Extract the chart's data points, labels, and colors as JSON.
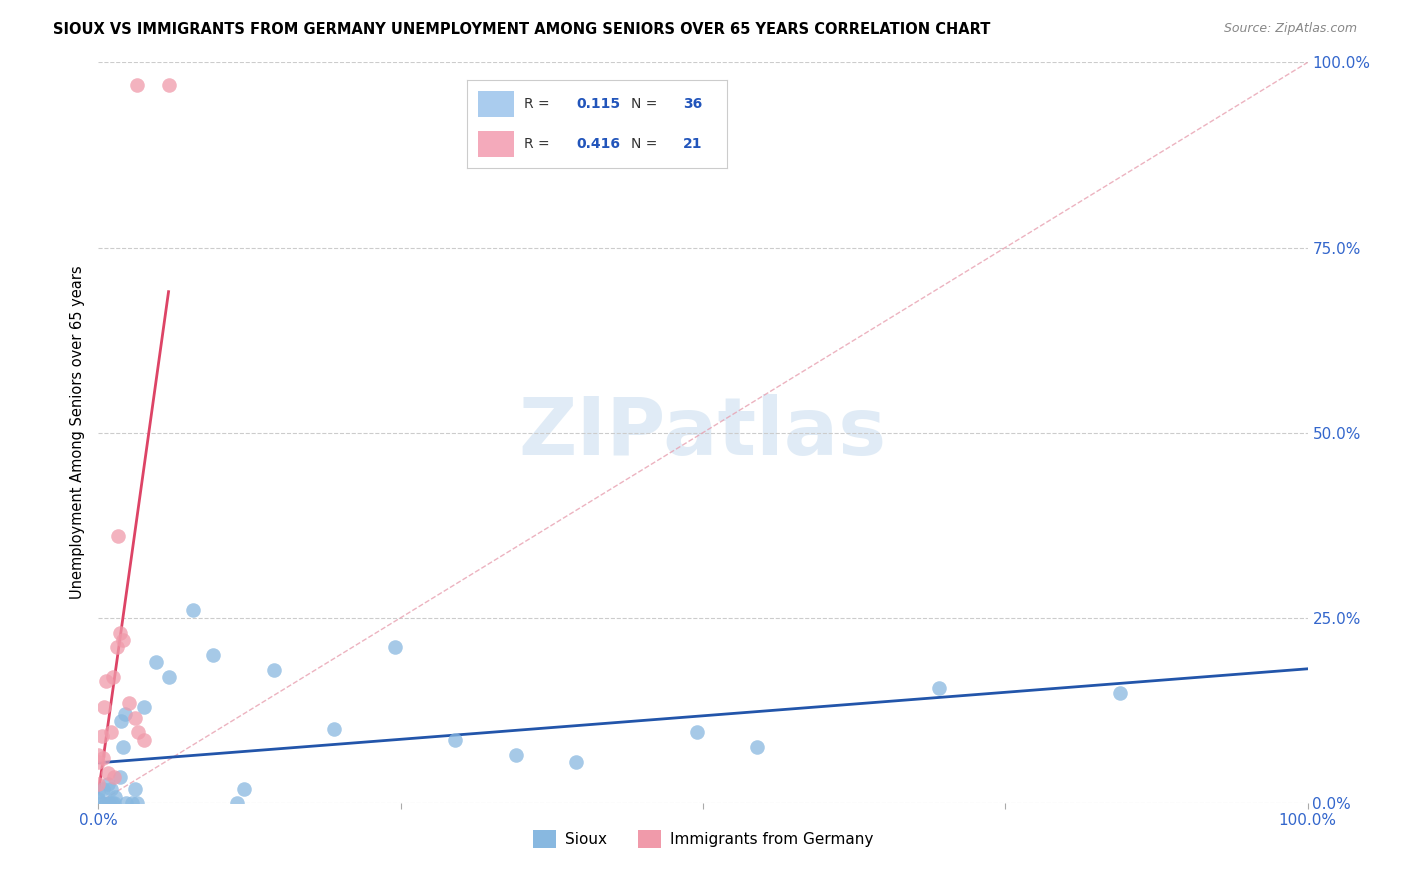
{
  "title": "SIOUX VS IMMIGRANTS FROM GERMANY UNEMPLOYMENT AMONG SENIORS OVER 65 YEARS CORRELATION CHART",
  "source": "Source: ZipAtlas.com",
  "ylabel": "Unemployment Among Seniors over 65 years",
  "yticks": [
    "0.0%",
    "25.0%",
    "50.0%",
    "75.0%",
    "100.0%"
  ],
  "ytick_vals": [
    0,
    0.25,
    0.5,
    0.75,
    1.0
  ],
  "xtick_vals": [
    0.0,
    0.25,
    0.5,
    0.75,
    1.0
  ],
  "xtick_labels": [
    "0.0%",
    "",
    "",
    "",
    "100.0%"
  ],
  "legend_entries": [
    {
      "label": "Sioux",
      "R": "0.115",
      "N": "36",
      "color": "#aaccee"
    },
    {
      "label": "Immigrants from Germany",
      "R": "0.416",
      "N": "21",
      "color": "#f4aabb"
    }
  ],
  "sioux_color": "#88b8e0",
  "germany_color": "#f09aaa",
  "trend_sioux_color": "#2255aa",
  "trend_germany_color": "#dd4466",
  "ref_line_color": "#e8a0b0",
  "watermark": "ZIPatlas",
  "watermark_color": "#ccdff0",
  "sioux_points": [
    [
      0.0,
      0.015
    ],
    [
      0.0,
      0.005
    ],
    [
      0.003,
      0.0
    ],
    [
      0.004,
      0.018
    ],
    [
      0.006,
      0.0
    ],
    [
      0.008,
      0.025
    ],
    [
      0.009,
      0.0
    ],
    [
      0.01,
      0.018
    ],
    [
      0.011,
      0.0
    ],
    [
      0.013,
      0.0
    ],
    [
      0.014,
      0.008
    ],
    [
      0.018,
      0.035
    ],
    [
      0.019,
      0.11
    ],
    [
      0.02,
      0.075
    ],
    [
      0.022,
      0.12
    ],
    [
      0.023,
      0.0
    ],
    [
      0.028,
      0.0
    ],
    [
      0.03,
      0.018
    ],
    [
      0.032,
      0.0
    ],
    [
      0.038,
      0.13
    ],
    [
      0.048,
      0.19
    ],
    [
      0.058,
      0.17
    ],
    [
      0.078,
      0.26
    ],
    [
      0.095,
      0.2
    ],
    [
      0.115,
      0.0
    ],
    [
      0.12,
      0.018
    ],
    [
      0.145,
      0.18
    ],
    [
      0.195,
      0.1
    ],
    [
      0.245,
      0.21
    ],
    [
      0.295,
      0.085
    ],
    [
      0.345,
      0.065
    ],
    [
      0.395,
      0.055
    ],
    [
      0.495,
      0.095
    ],
    [
      0.545,
      0.075
    ],
    [
      0.695,
      0.155
    ],
    [
      0.845,
      0.148
    ]
  ],
  "germany_points": [
    [
      0.0,
      0.065
    ],
    [
      0.0,
      0.055
    ],
    [
      0.0,
      0.025
    ],
    [
      0.003,
      0.09
    ],
    [
      0.004,
      0.06
    ],
    [
      0.005,
      0.13
    ],
    [
      0.006,
      0.165
    ],
    [
      0.008,
      0.04
    ],
    [
      0.01,
      0.095
    ],
    [
      0.012,
      0.17
    ],
    [
      0.013,
      0.035
    ],
    [
      0.015,
      0.21
    ],
    [
      0.016,
      0.36
    ],
    [
      0.018,
      0.23
    ],
    [
      0.02,
      0.22
    ],
    [
      0.025,
      0.135
    ],
    [
      0.03,
      0.115
    ],
    [
      0.033,
      0.095
    ],
    [
      0.038,
      0.085
    ],
    [
      0.032,
      0.97
    ],
    [
      0.058,
      0.97
    ]
  ],
  "xmin": 0.0,
  "xmax": 1.0,
  "ymin": 0.0,
  "ymax": 1.0
}
